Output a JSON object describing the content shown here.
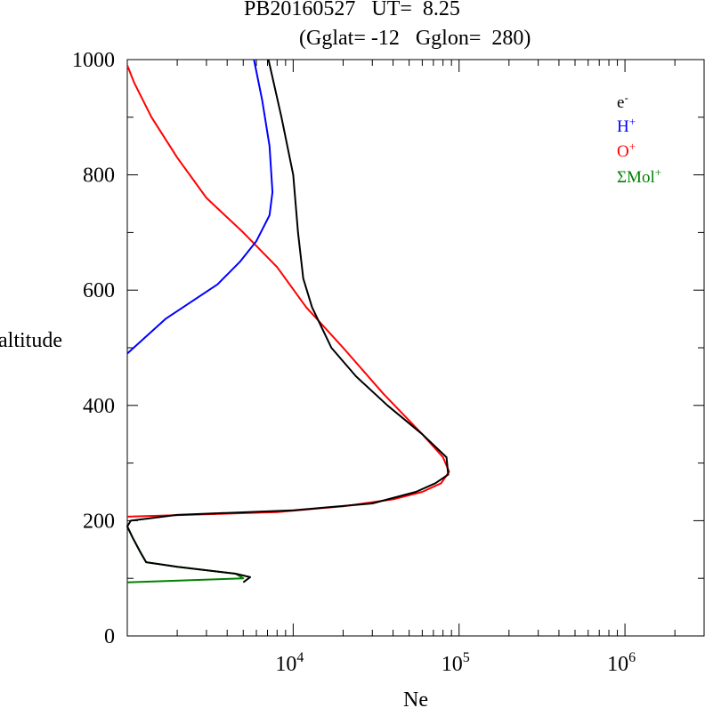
{
  "title_line1": "PB20160527   UT=  8.25",
  "title_line2": "(Gglat= -12   Gglon=  280)",
  "chart_data": {
    "type": "line",
    "xlabel": "Ne",
    "ylabel": "altitude",
    "xscale": "log",
    "xlim": [
      1000,
      3000000
    ],
    "ylim": [
      0,
      1000
    ],
    "x_ticks": [
      {
        "base": "10",
        "exp": "4",
        "value": 10000
      },
      {
        "base": "10",
        "exp": "5",
        "value": 100000
      },
      {
        "base": "10",
        "exp": "6",
        "value": 1000000
      }
    ],
    "y_ticks": [
      "0",
      "200",
      "400",
      "600",
      "800",
      "1000"
    ],
    "legend_position": "top-right",
    "grid": false,
    "series": [
      {
        "name_base": "e",
        "name_sup": "-",
        "color": "#000000",
        "points": [
          [
            5000,
            93
          ],
          [
            5500,
            102
          ],
          [
            4500,
            108
          ],
          [
            2000,
            120
          ],
          [
            1300,
            128
          ],
          [
            1200,
            145
          ],
          [
            1080,
            170
          ],
          [
            1000,
            190
          ],
          [
            1050,
            200
          ],
          [
            2000,
            210
          ],
          [
            10000,
            218
          ],
          [
            30000,
            230
          ],
          [
            55000,
            250
          ],
          [
            72000,
            265
          ],
          [
            86000,
            280
          ],
          [
            84000,
            310
          ],
          [
            60000,
            350
          ],
          [
            37000,
            400
          ],
          [
            24000,
            450
          ],
          [
            17000,
            500
          ],
          [
            13000,
            570
          ],
          [
            11500,
            620
          ],
          [
            10700,
            700
          ],
          [
            10000,
            800
          ],
          [
            8500,
            900
          ],
          [
            7100,
            1000
          ]
        ]
      },
      {
        "name_base": "H",
        "name_sup": "+",
        "color": "#0000ff",
        "points": [
          [
            1000,
            490
          ],
          [
            1700,
            550
          ],
          [
            3500,
            610
          ],
          [
            4800,
            650
          ],
          [
            6000,
            685
          ],
          [
            7200,
            730
          ],
          [
            7500,
            770
          ],
          [
            7200,
            850
          ],
          [
            6500,
            930
          ],
          [
            5800,
            1000
          ]
        ]
      },
      {
        "name_base": "O",
        "name_sup": "+",
        "color": "#ff0000",
        "points": [
          [
            1000,
            207
          ],
          [
            8000,
            215
          ],
          [
            20000,
            225
          ],
          [
            40000,
            237
          ],
          [
            60000,
            250
          ],
          [
            78000,
            265
          ],
          [
            87000,
            285
          ],
          [
            80000,
            310
          ],
          [
            60000,
            350
          ],
          [
            35000,
            420
          ],
          [
            20000,
            500
          ],
          [
            12000,
            570
          ],
          [
            8000,
            640
          ],
          [
            5000,
            700
          ],
          [
            3000,
            760
          ],
          [
            2000,
            830
          ],
          [
            1400,
            900
          ],
          [
            1100,
            960
          ],
          [
            1000,
            990
          ]
        ]
      },
      {
        "name_base": "ΣMol",
        "name_sup": "+",
        "color": "#008000",
        "points": [
          [
            1000,
            93
          ],
          [
            5000,
            100
          ],
          [
            4500,
            108
          ],
          [
            2000,
            120
          ],
          [
            1300,
            128
          ],
          [
            1200,
            145
          ],
          [
            1080,
            170
          ],
          [
            1000,
            190
          ]
        ]
      }
    ]
  }
}
